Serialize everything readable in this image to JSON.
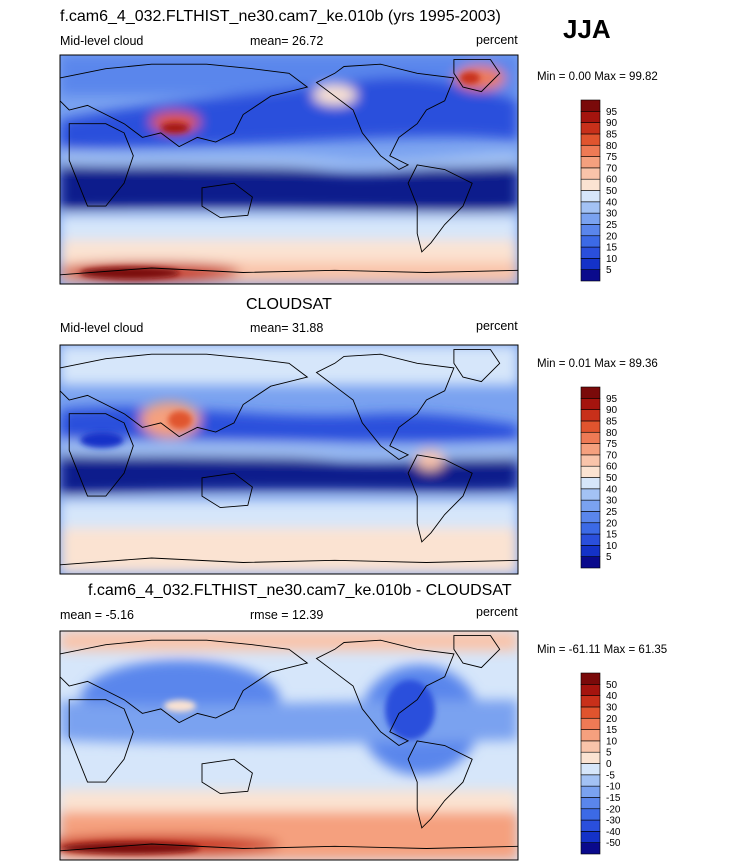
{
  "season": "JJA",
  "palette": {
    "ocean_low": "#0a1a8c",
    "land_outline": "#000000"
  },
  "panels": [
    {
      "id": "model",
      "title": "f.cam6_4_032.FLTHIST_ne30.cam7_ke.010b (yrs 1995-2003)",
      "left_label": "Mid-level cloud",
      "center_label": "mean=  26.72",
      "right_label": "percent",
      "minmax": "Min =   0.00 Max =  99.82"
    },
    {
      "id": "obs",
      "title": "CLOUDSAT",
      "left_label": "Mid-level cloud",
      "center_label": "mean=  31.88",
      "right_label": "percent",
      "minmax": "Min =   0.01 Max =  89.36"
    },
    {
      "id": "diff",
      "title": "f.cam6_4_032.FLTHIST_ne30.cam7_ke.010b - CLOUDSAT",
      "left_label": "mean =  -5.16",
      "center_label": "rmse =  12.39",
      "right_label": "percent",
      "minmax": "Min = -61.11 Max =  61.35"
    }
  ],
  "chart_data": [
    {
      "type": "heatmap",
      "title": "f.cam6_4_032.FLTHIST_ne30.cam7_ke.010b (yrs 1995-2003)",
      "variable": "Mid-level cloud",
      "units": "percent",
      "mean": 26.72,
      "min": 0.0,
      "max": 99.82,
      "colorbar_levels": [
        5,
        10,
        15,
        20,
        25,
        30,
        40,
        50,
        60,
        70,
        75,
        80,
        85,
        90,
        95
      ],
      "colorbar_colors": [
        "#0a0a8c",
        "#1432c8",
        "#2a4fdc",
        "#3c6ae6",
        "#5a86ec",
        "#7aa2f0",
        "#a3c2f4",
        "#d6e6fa",
        "#fbe3d2",
        "#f9c4aa",
        "#f5a07e",
        "#ee7a55",
        "#e0542e",
        "#c8301a",
        "#a4140e",
        "#7a0a0a"
      ]
    },
    {
      "type": "heatmap",
      "title": "CLOUDSAT",
      "variable": "Mid-level cloud",
      "units": "percent",
      "mean": 31.88,
      "min": 0.01,
      "max": 89.36,
      "colorbar_levels": [
        5,
        10,
        15,
        20,
        25,
        30,
        40,
        50,
        60,
        70,
        75,
        80,
        85,
        90,
        95
      ],
      "colorbar_colors": [
        "#0a0a8c",
        "#1432c8",
        "#2a4fdc",
        "#3c6ae6",
        "#5a86ec",
        "#7aa2f0",
        "#a3c2f4",
        "#d6e6fa",
        "#fbe3d2",
        "#f9c4aa",
        "#f5a07e",
        "#ee7a55",
        "#e0542e",
        "#c8301a",
        "#a4140e",
        "#7a0a0a"
      ]
    },
    {
      "type": "heatmap",
      "title": "f.cam6_4_032.FLTHIST_ne30.cam7_ke.010b - CLOUDSAT",
      "variable": "",
      "units": "percent",
      "mean": -5.16,
      "rmse": 12.39,
      "min": -61.11,
      "max": 61.35,
      "colorbar_levels": [
        -50,
        -40,
        -30,
        -20,
        -15,
        -10,
        -5,
        0,
        5,
        10,
        15,
        20,
        30,
        40,
        50
      ],
      "colorbar_colors": [
        "#0a0a8c",
        "#1432c8",
        "#2a4fdc",
        "#3c6ae6",
        "#5a86ec",
        "#7aa2f0",
        "#a3c2f4",
        "#d6e6fa",
        "#fbe3d2",
        "#f9c4aa",
        "#f5a07e",
        "#ee7a55",
        "#e0542e",
        "#c8301a",
        "#a4140e",
        "#7a0a0a"
      ]
    }
  ]
}
